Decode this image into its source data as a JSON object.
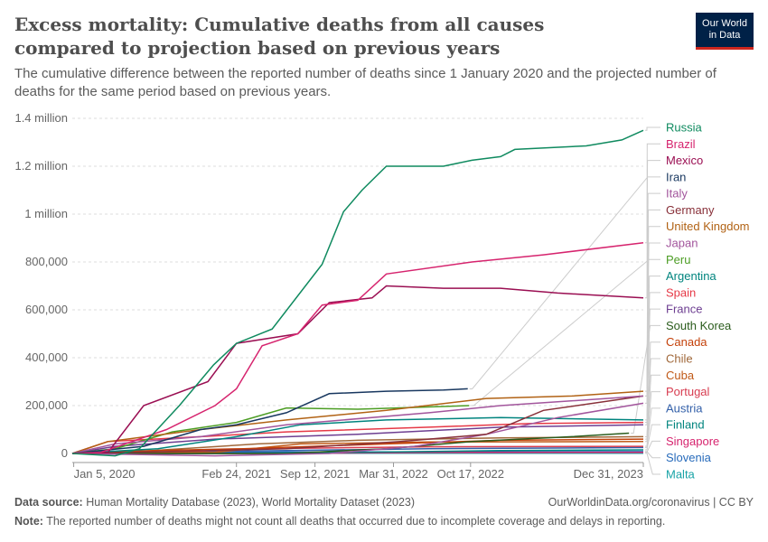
{
  "title": "Excess mortality: Cumulative deaths from all causes compared to projection based on previous years",
  "subtitle": "The cumulative difference between the reported number of deaths since 1 January 2020 and the projected number of deaths for the same period based on previous years.",
  "logo": {
    "line1": "Our World",
    "line2": "in Data"
  },
  "footer": {
    "source_label": "Data source:",
    "source": "Human Mortality Database (2023), World Mortality Dataset (2023)",
    "url": "OurWorldinData.org/coronavirus | CC BY",
    "note_label": "Note:",
    "note": "The reported number of deaths might not count all deaths that occurred due to incomplete coverage and delays in reporting."
  },
  "chart_data": {
    "type": "line",
    "title": "Excess mortality: Cumulative deaths from all causes compared to projection based on previous years",
    "ylabel": "",
    "xlabel": "",
    "xlim": [
      2020.0,
      2024.0
    ],
    "ylim": [
      0,
      1400000
    ],
    "y_ticks": [
      {
        "v": 0,
        "label": "0"
      },
      {
        "v": 200000,
        "label": "200,000"
      },
      {
        "v": 400000,
        "label": "400,000"
      },
      {
        "v": 600000,
        "label": "600,000"
      },
      {
        "v": 800000,
        "label": "800,000"
      },
      {
        "v": 1000000,
        "label": "1 million"
      },
      {
        "v": 1200000,
        "label": "1.2 million"
      },
      {
        "v": 1400000,
        "label": "1.4 million"
      }
    ],
    "x_ticks": [
      {
        "v": 2020.01,
        "label": "Jan 5, 2020"
      },
      {
        "v": 2021.15,
        "label": "Feb 24, 2021"
      },
      {
        "v": 2021.7,
        "label": "Sep 12, 2021"
      },
      {
        "v": 2022.25,
        "label": "Mar 31, 2022"
      },
      {
        "v": 2022.79,
        "label": "Oct 17, 2022"
      },
      {
        "v": 2024.0,
        "label": "Dec 31, 2023"
      }
    ],
    "grid": true,
    "legend": "right",
    "series": [
      {
        "name": "Russia",
        "color": "#0f8a5f",
        "x": [
          2020.0,
          2020.3,
          2020.47,
          2020.75,
          2020.99,
          2021.15,
          2021.4,
          2021.75,
          2021.9,
          2022.03,
          2022.2,
          2022.6,
          2022.8,
          2023.0,
          2023.1,
          2023.6,
          2023.85,
          2024.0
        ],
        "y": [
          0,
          -10,
          20,
          200,
          370,
          460,
          520,
          790,
          1010,
          1100,
          1200,
          1200,
          1225,
          1240,
          1270,
          1285,
          1310,
          1350
        ]
      },
      {
        "name": "Brazil",
        "color": "#d6246e",
        "x": [
          2020.0,
          2020.2,
          2020.66,
          2021.0,
          2021.15,
          2021.33,
          2021.58,
          2021.75,
          2022.0,
          2022.2,
          2022.8,
          2023.3,
          2024.0
        ],
        "y": [
          0,
          5,
          100,
          200,
          270,
          450,
          500,
          620,
          640,
          750,
          800,
          830,
          880
        ]
      },
      {
        "name": "Mexico",
        "color": "#9a0e52",
        "x": [
          2020.0,
          2020.25,
          2020.5,
          2020.95,
          2021.15,
          2021.58,
          2021.8,
          2022.1,
          2022.2,
          2022.6,
          2023.0,
          2023.4,
          2024.0
        ],
        "y": [
          0,
          5,
          200,
          300,
          460,
          500,
          630,
          650,
          700,
          690,
          690,
          670,
          650
        ]
      },
      {
        "name": "Iran",
        "color": "#18375f",
        "x": [
          2020.0,
          2020.5,
          2020.9,
          2021.15,
          2021.5,
          2021.8,
          2022.2,
          2022.6,
          2022.77
        ],
        "y": [
          0,
          30,
          100,
          120,
          170,
          250,
          260,
          265,
          270
        ]
      },
      {
        "name": "Italy",
        "color": "#a2559c",
        "x": [
          2020.0,
          2020.3,
          2020.9,
          2021.5,
          2022.5,
          2023.0,
          2024.0
        ],
        "y": [
          0,
          40,
          70,
          120,
          170,
          200,
          240
        ]
      },
      {
        "name": "Germany",
        "color": "#883039",
        "x": [
          2020.0,
          2020.8,
          2021.5,
          2022.3,
          2022.9,
          2023.3,
          2024.0
        ],
        "y": [
          0,
          10,
          20,
          50,
          80,
          180,
          240
        ]
      },
      {
        "name": "United Kingdom",
        "color": "#b16214",
        "x": [
          2020.0,
          2020.25,
          2020.9,
          2021.5,
          2022.2,
          2022.9,
          2023.5,
          2024.0
        ],
        "y": [
          0,
          50,
          100,
          140,
          180,
          230,
          240,
          260
        ]
      },
      {
        "name": "Japan",
        "color": "#a2559c",
        "x": [
          2020.0,
          2021.0,
          2021.8,
          2022.4,
          2022.9,
          2023.4,
          2024.0
        ],
        "y": [
          0,
          -10,
          0,
          30,
          80,
          150,
          210
        ]
      },
      {
        "name": "Peru",
        "color": "#4c9d24",
        "x": [
          2020.0,
          2020.3,
          2020.7,
          2021.15,
          2021.5,
          2022.0,
          2022.78
        ],
        "y": [
          0,
          20,
          90,
          130,
          190,
          185,
          200
        ]
      },
      {
        "name": "Argentina",
        "color": "#00847e",
        "x": [
          2020.0,
          2020.6,
          2021.15,
          2021.6,
          2022.2,
          2023.0,
          2024.0
        ],
        "y": [
          0,
          20,
          70,
          120,
          140,
          150,
          140
        ]
      },
      {
        "name": "Spain",
        "color": "#e63946",
        "x": [
          2020.0,
          2020.25,
          2020.9,
          2021.5,
          2022.5,
          2023.2,
          2024.0
        ],
        "y": [
          0,
          50,
          70,
          90,
          110,
          125,
          130
        ]
      },
      {
        "name": "France",
        "color": "#6d3e91",
        "x": [
          2020.0,
          2020.3,
          2021.0,
          2022.0,
          2023.0,
          2024.0
        ],
        "y": [
          0,
          30,
          60,
          80,
          110,
          120
        ]
      },
      {
        "name": "South Korea",
        "color": "#2b5c1d",
        "x": [
          2020.0,
          2021.5,
          2022.2,
          2022.8,
          2023.5,
          2023.9
        ],
        "y": [
          0,
          0,
          20,
          50,
          70,
          85
        ]
      },
      {
        "name": "Canada",
        "color": "#c4410a",
        "x": [
          2020.0,
          2020.4,
          2021.2,
          2022.2,
          2023.0,
          2024.0
        ],
        "y": [
          0,
          10,
          20,
          40,
          55,
          60
        ]
      },
      {
        "name": "Chile",
        "color": "#a0683a",
        "x": [
          2020.0,
          2020.5,
          2021.3,
          2022.0,
          2023.0,
          2024.0
        ],
        "y": [
          0,
          10,
          40,
          55,
          65,
          70
        ]
      },
      {
        "name": "Cuba",
        "color": "#c05917",
        "x": [
          2020.0,
          2021.0,
          2021.6,
          2022.5,
          2024.0
        ],
        "y": [
          0,
          5,
          40,
          48,
          50
        ]
      },
      {
        "name": "Portugal",
        "color": "#d73c50",
        "x": [
          2020.0,
          2020.9,
          2021.3,
          2022.5,
          2024.0
        ],
        "y": [
          0,
          10,
          20,
          28,
          30
        ]
      },
      {
        "name": "Austria",
        "color": "#3360a9",
        "x": [
          2020.0,
          2020.9,
          2021.5,
          2022.5,
          2024.0
        ],
        "y": [
          0,
          8,
          12,
          20,
          25
        ]
      },
      {
        "name": "Finland",
        "color": "#00847e",
        "x": [
          2020.0,
          2021.0,
          2022.0,
          2023.0,
          2024.0
        ],
        "y": [
          0,
          0,
          5,
          12,
          15
        ]
      },
      {
        "name": "Singapore",
        "color": "#d6246e",
        "x": [
          2020.0,
          2021.5,
          2022.5,
          2024.0
        ],
        "y": [
          0,
          0,
          4,
          5
        ]
      },
      {
        "name": "Slovenia",
        "color": "#286bbb",
        "x": [
          2020.0,
          2020.9,
          2021.5,
          2024.0
        ],
        "y": [
          0,
          4,
          6,
          8
        ]
      },
      {
        "name": "Malta",
        "color": "#18a3a6",
        "x": [
          2020.0,
          2022.0,
          2024.0
        ],
        "y": [
          0,
          1,
          1
        ]
      }
    ]
  }
}
